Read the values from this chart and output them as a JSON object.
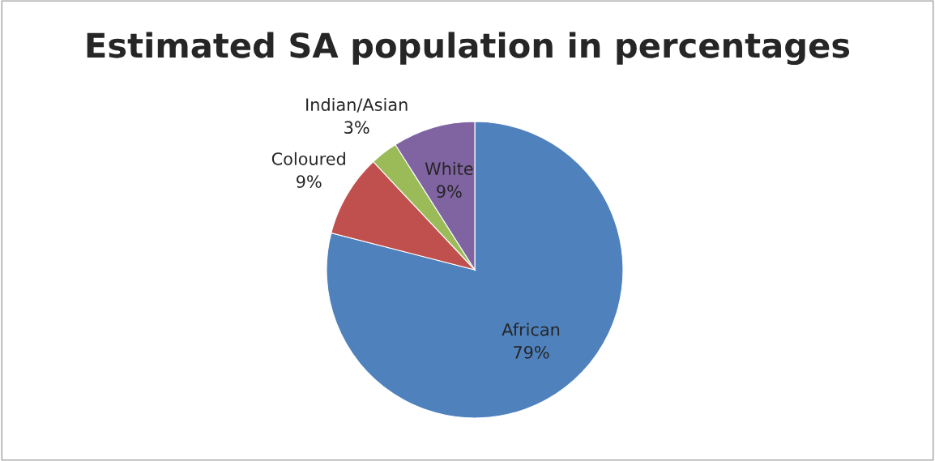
{
  "chart_data": {
    "type": "pie",
    "title": "Estimated SA population in percentages",
    "categories": [
      "African",
      "Coloured",
      "Indian/Asian",
      "White"
    ],
    "values": [
      79,
      9,
      3,
      9
    ],
    "colors": [
      "#4f81bd",
      "#c0504d",
      "#9bbb59",
      "#8064a2"
    ],
    "value_labels": [
      "79%",
      "9%",
      "3%",
      "9%"
    ],
    "legend": false
  }
}
